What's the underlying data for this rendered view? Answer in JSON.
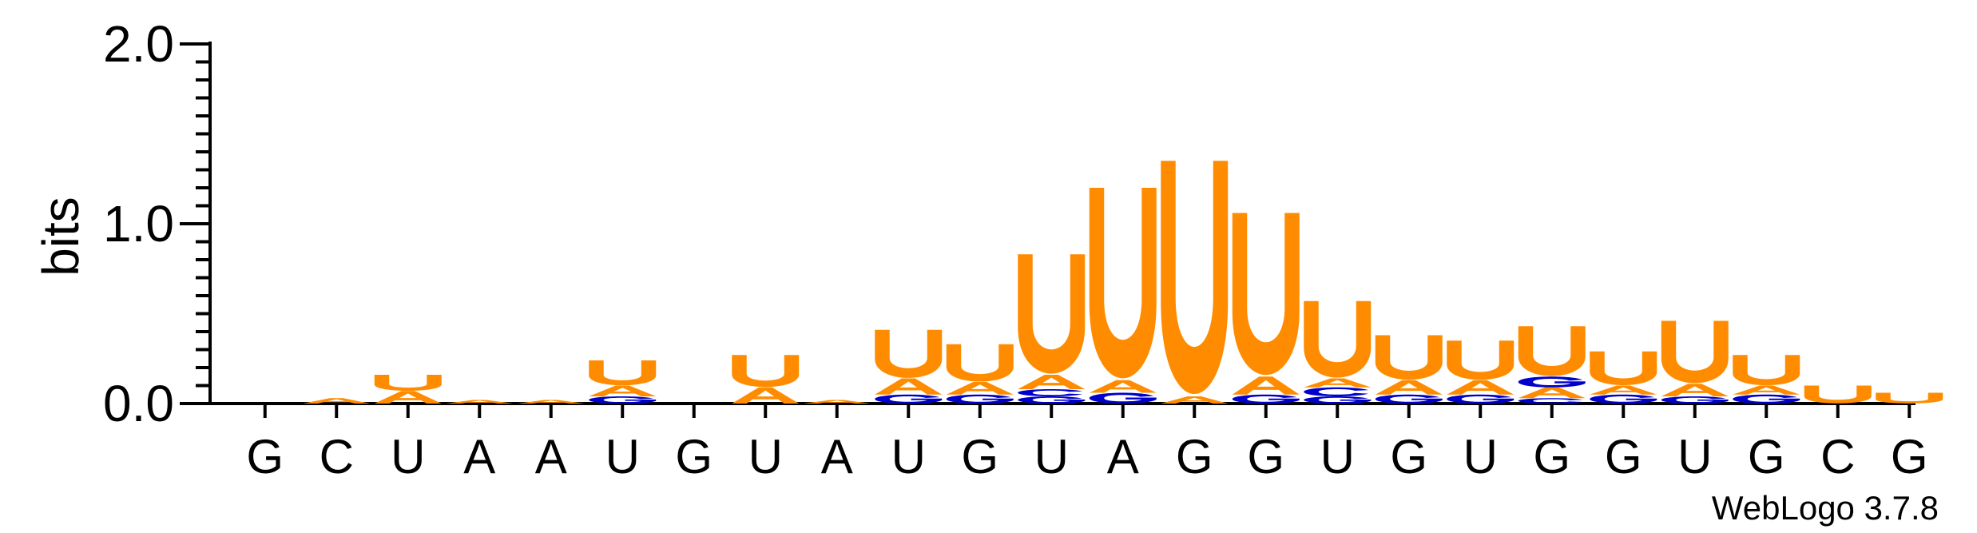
{
  "chart_data": {
    "type": "sequence-logo",
    "ylabel": "bits",
    "ylim": [
      0,
      2.0
    ],
    "yticks": [
      "0.0",
      "1.0",
      "2.0"
    ],
    "xlabels": [
      "G",
      "C",
      "U",
      "A",
      "A",
      "U",
      "G",
      "U",
      "A",
      "U",
      "G",
      "U",
      "A",
      "G",
      "G",
      "U",
      "G",
      "U",
      "G",
      "G",
      "U",
      "G",
      "C",
      "G"
    ],
    "colors": {
      "U": "#ff8c00",
      "A": "#ff8c00",
      "C": "#0000cc",
      "G": "#0000cc"
    },
    "columns": [
      [],
      [
        {
          "letter": "A",
          "value": 0.03
        }
      ],
      [
        {
          "letter": "A",
          "value": 0.07
        },
        {
          "letter": "U",
          "value": 0.09
        }
      ],
      [
        {
          "letter": "A",
          "value": 0.02
        }
      ],
      [
        {
          "letter": "A",
          "value": 0.02
        }
      ],
      [
        {
          "letter": "G",
          "value": 0.04
        },
        {
          "letter": "A",
          "value": 0.06
        },
        {
          "letter": "U",
          "value": 0.14
        }
      ],
      [],
      [
        {
          "letter": "A",
          "value": 0.09
        },
        {
          "letter": "U",
          "value": 0.18
        }
      ],
      [
        {
          "letter": "A",
          "value": 0.02
        }
      ],
      [
        {
          "letter": "G",
          "value": 0.05
        },
        {
          "letter": "A",
          "value": 0.09
        },
        {
          "letter": "U",
          "value": 0.27
        }
      ],
      [
        {
          "letter": "G",
          "value": 0.05
        },
        {
          "letter": "A",
          "value": 0.07
        },
        {
          "letter": "U",
          "value": 0.21
        }
      ],
      [
        {
          "letter": "G",
          "value": 0.04
        },
        {
          "letter": "C",
          "value": 0.04
        },
        {
          "letter": "A",
          "value": 0.08
        },
        {
          "letter": "U",
          "value": 0.67
        }
      ],
      [
        {
          "letter": "G",
          "value": 0.06
        },
        {
          "letter": "A",
          "value": 0.07
        },
        {
          "letter": "U",
          "value": 1.07
        }
      ],
      [
        {
          "letter": "A",
          "value": 0.04
        },
        {
          "letter": "U",
          "value": 1.31
        }
      ],
      [
        {
          "letter": "G",
          "value": 0.05
        },
        {
          "letter": "A",
          "value": 0.1
        },
        {
          "letter": "U",
          "value": 0.91
        }
      ],
      [
        {
          "letter": "G",
          "value": 0.04
        },
        {
          "letter": "C",
          "value": 0.05
        },
        {
          "letter": "A",
          "value": 0.05
        },
        {
          "letter": "U",
          "value": 0.43
        }
      ],
      [
        {
          "letter": "G",
          "value": 0.05
        },
        {
          "letter": "A",
          "value": 0.08
        },
        {
          "letter": "U",
          "value": 0.25
        }
      ],
      [
        {
          "letter": "G",
          "value": 0.05
        },
        {
          "letter": "A",
          "value": 0.08
        },
        {
          "letter": "U",
          "value": 0.22
        }
      ],
      [
        {
          "letter": "C",
          "value": 0.03
        },
        {
          "letter": "A",
          "value": 0.06
        },
        {
          "letter": "G",
          "value": 0.06
        },
        {
          "letter": "U",
          "value": 0.28
        }
      ],
      [
        {
          "letter": "G",
          "value": 0.05
        },
        {
          "letter": "A",
          "value": 0.05
        },
        {
          "letter": "U",
          "value": 0.19
        }
      ],
      [
        {
          "letter": "G",
          "value": 0.04
        },
        {
          "letter": "A",
          "value": 0.07
        },
        {
          "letter": "U",
          "value": 0.35
        }
      ],
      [
        {
          "letter": "G",
          "value": 0.05
        },
        {
          "letter": "A",
          "value": 0.05
        },
        {
          "letter": "U",
          "value": 0.17
        }
      ],
      [
        {
          "letter": "U",
          "value": 0.1
        }
      ],
      [
        {
          "letter": "U",
          "value": 0.06
        }
      ]
    ]
  },
  "footer": {
    "credit": "WebLogo 3.7.8"
  }
}
